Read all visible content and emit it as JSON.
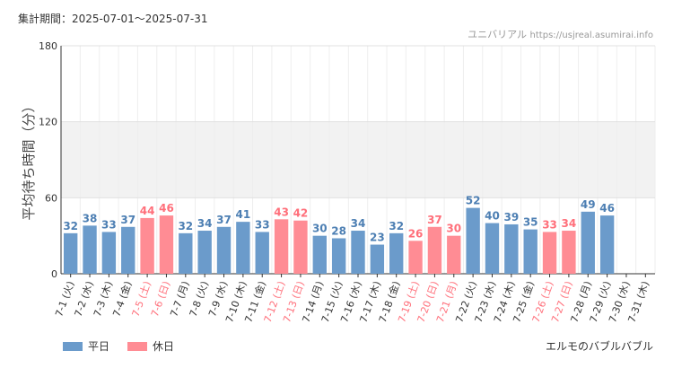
{
  "header": {
    "period_label": "集計期間：2025-07-01～2025-07-31",
    "credit_name": "ユニバリアル",
    "credit_url": "https://usjreal.asumirai.info"
  },
  "footer": {
    "attraction": "エルモのバブルバブル"
  },
  "colors": {
    "weekday": "#6b9bcb",
    "holiday": "#ff8c94",
    "weekday_label": "#4d7fb3",
    "holiday_label": "#ff6f7a",
    "highlight_band": "#f2f2f2",
    "grid": "#e0e0e0"
  },
  "chart_data": {
    "type": "bar",
    "title": "",
    "xlabel": "",
    "ylabel": "平均待ち時間（分）",
    "ylim": [
      0,
      180
    ],
    "yticks": [
      0,
      60,
      120,
      180
    ],
    "highlight_band": [
      60,
      120
    ],
    "grid": true,
    "legend_position": "bottom-left",
    "categories": [
      "7-1 (火)",
      "7-2 (水)",
      "7-3 (木)",
      "7-4 (金)",
      "7-5 (土)",
      "7-6 (日)",
      "7-7 (月)",
      "7-8 (火)",
      "7-9 (水)",
      "7-10 (木)",
      "7-11 (金)",
      "7-12 (土)",
      "7-13 (日)",
      "7-14 (月)",
      "7-15 (火)",
      "7-16 (水)",
      "7-17 (木)",
      "7-18 (金)",
      "7-19 (土)",
      "7-20 (日)",
      "7-21 (月)",
      "7-22 (火)",
      "7-23 (水)",
      "7-24 (木)",
      "7-25 (金)",
      "7-26 (土)",
      "7-27 (日)",
      "7-28 (月)",
      "7-29 (火)",
      "7-30 (水)",
      "7-31 (木)"
    ],
    "values": [
      32,
      38,
      33,
      37,
      44,
      46,
      32,
      34,
      37,
      41,
      33,
      43,
      42,
      30,
      28,
      34,
      23,
      32,
      26,
      37,
      30,
      52,
      40,
      39,
      35,
      33,
      34,
      49,
      46,
      null,
      null
    ],
    "day_type": [
      "weekday",
      "weekday",
      "weekday",
      "weekday",
      "holiday",
      "holiday",
      "weekday",
      "weekday",
      "weekday",
      "weekday",
      "weekday",
      "holiday",
      "holiday",
      "weekday",
      "weekday",
      "weekday",
      "weekday",
      "weekday",
      "holiday",
      "holiday",
      "holiday",
      "weekday",
      "weekday",
      "weekday",
      "weekday",
      "holiday",
      "holiday",
      "weekday",
      "weekday",
      "weekday",
      "weekday"
    ],
    "series": [
      {
        "name": "平日",
        "color": "#6b9bcb"
      },
      {
        "name": "休日",
        "color": "#ff8c94"
      }
    ]
  }
}
